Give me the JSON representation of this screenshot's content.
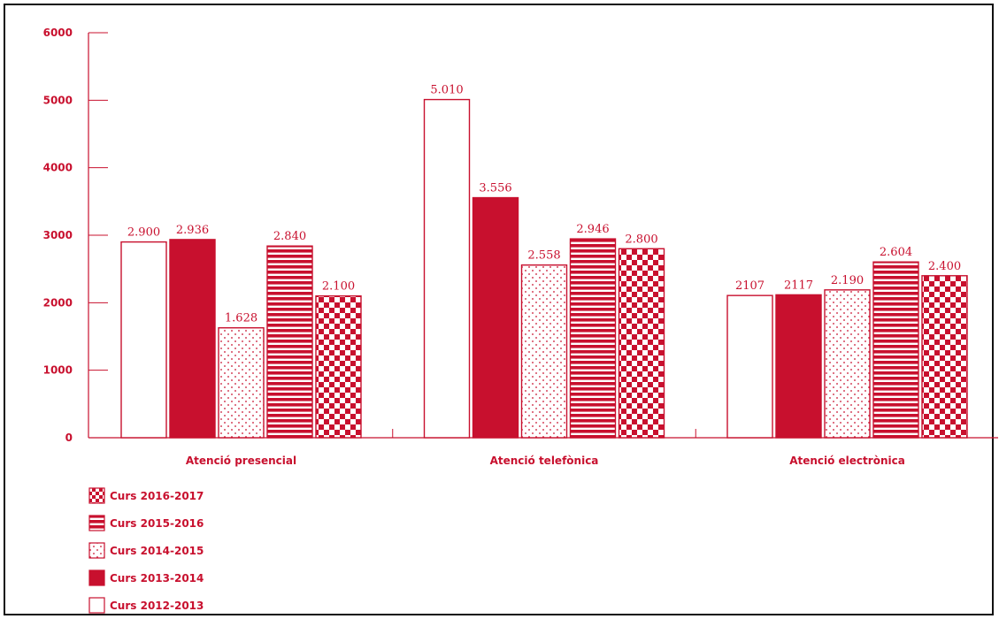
{
  "chart_data": {
    "type": "bar",
    "categories": [
      "Atenció presencial",
      "Atenció telefònica",
      "Atenció electrònica"
    ],
    "yticks": [
      "0",
      "1000",
      "2000",
      "3000",
      "4000",
      "5000",
      "6000"
    ],
    "ylim": [
      0,
      6000
    ],
    "series": [
      {
        "name": "Curs 2012-2013",
        "values": [
          2900,
          5010,
          2107
        ],
        "labels": [
          "2.900",
          "5.010",
          "2107"
        ],
        "pattern": "empty"
      },
      {
        "name": "Curs 2013-2014",
        "values": [
          2936,
          3556,
          2117
        ],
        "labels": [
          "2.936",
          "3.556",
          "2117"
        ],
        "pattern": "solid"
      },
      {
        "name": "Curs 2014-2015",
        "values": [
          1628,
          2558,
          2190
        ],
        "labels": [
          "1.628",
          "2.558",
          "2.190"
        ],
        "pattern": "dots"
      },
      {
        "name": "Curs 2015-2016",
        "values": [
          2840,
          2946,
          2604
        ],
        "labels": [
          "2.840",
          "2.946",
          "2.604"
        ],
        "pattern": "stripes"
      },
      {
        "name": "Curs 2016-2017",
        "values": [
          2100,
          2800,
          2400
        ],
        "labels": [
          "2.100",
          "2.800",
          "2.400"
        ],
        "pattern": "checker"
      }
    ],
    "legend_order": [
      4,
      3,
      2,
      1,
      0
    ],
    "legend_position": "bottom-left",
    "colors": {
      "accent": "#c8102e",
      "background": "#ffffff"
    }
  }
}
